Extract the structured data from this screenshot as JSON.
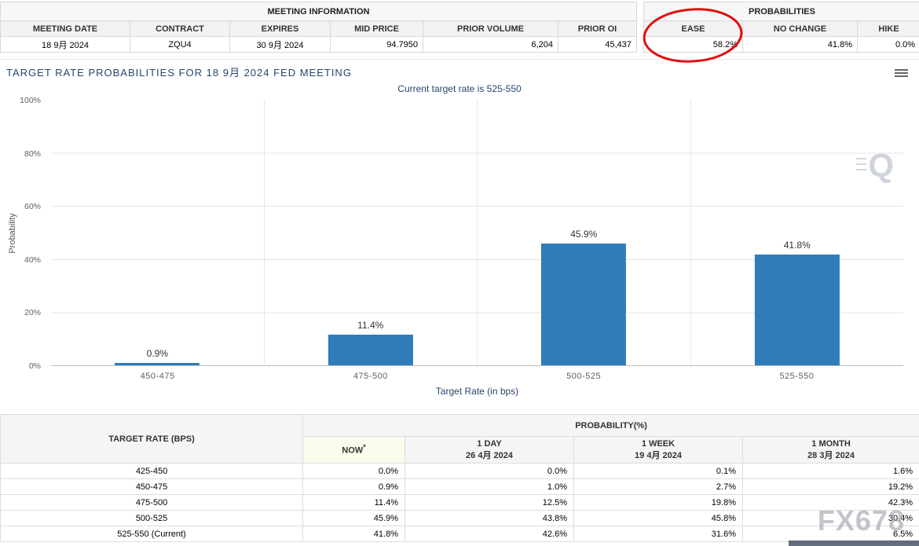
{
  "meeting_info": {
    "title": "MEETING INFORMATION",
    "headers": [
      "MEETING DATE",
      "CONTRACT",
      "EXPIRES",
      "MID PRICE",
      "PRIOR VOLUME",
      "PRIOR OI"
    ],
    "values": [
      "18 9月 2024",
      "ZQU4",
      "30 9月 2024",
      "94.7950",
      "6,204",
      "45,437"
    ]
  },
  "probabilities": {
    "title": "PROBABILITIES",
    "headers": [
      "EASE",
      "NO CHANGE",
      "HIKE"
    ],
    "values": [
      "58.2%",
      "41.8%",
      "0.0%"
    ],
    "annotation_color": "#e01010"
  },
  "chart": {
    "title": "TARGET RATE PROBABILITIES FOR 18 9月 2024 FED MEETING",
    "subtitle": "Current target rate is 525-550",
    "title_color": "#26466d"
  },
  "icons": {
    "chart_menu": "hamburger-icon",
    "chart_watermark": "Q"
  },
  "chart_data": {
    "type": "bar",
    "categories": [
      "450-475",
      "475-500",
      "500-525",
      "525-550"
    ],
    "values": [
      0.9,
      11.4,
      45.9,
      41.8
    ],
    "data_labels": [
      "0.9%",
      "11.4%",
      "45.9%",
      "41.8%"
    ],
    "title": "TARGET RATE PROBABILITIES FOR 18 9月 2024 FED MEETING",
    "subtitle": "Current target rate is 525-550",
    "xlabel": "Target Rate (in bps)",
    "ylabel": "Probability",
    "ylim": [
      0,
      100
    ],
    "yticks": [
      "0%",
      "20%",
      "40%",
      "60%",
      "80%",
      "100%"
    ],
    "grid": true,
    "legend": false,
    "bar_color": "#2f7cb9"
  },
  "history_table": {
    "rate_header": "TARGET RATE (BPS)",
    "group_header": "PROBABILITY(%)",
    "columns": [
      {
        "label": "NOW",
        "sup": "*",
        "date": ""
      },
      {
        "label": "1 DAY",
        "date": "26 4月 2024"
      },
      {
        "label": "1 WEEK",
        "date": "19 4月 2024"
      },
      {
        "label": "1 MONTH",
        "date": "28 3月 2024"
      }
    ],
    "rows": [
      {
        "rate": "425-450",
        "values": [
          "0.0%",
          "0.0%",
          "0.1%",
          "1.6%"
        ]
      },
      {
        "rate": "450-475",
        "values": [
          "0.9%",
          "1.0%",
          "2.7%",
          "19.2%"
        ]
      },
      {
        "rate": "475-500",
        "values": [
          "11.4%",
          "12.5%",
          "19.8%",
          "42.3%"
        ]
      },
      {
        "rate": "500-525",
        "values": [
          "45.9%",
          "43.8%",
          "45.8%",
          "30.4%"
        ]
      },
      {
        "rate": "525-550 (Current)",
        "values": [
          "41.8%",
          "42.6%",
          "31.6%",
          "6.5%"
        ]
      }
    ]
  },
  "watermark_text": "FX678"
}
